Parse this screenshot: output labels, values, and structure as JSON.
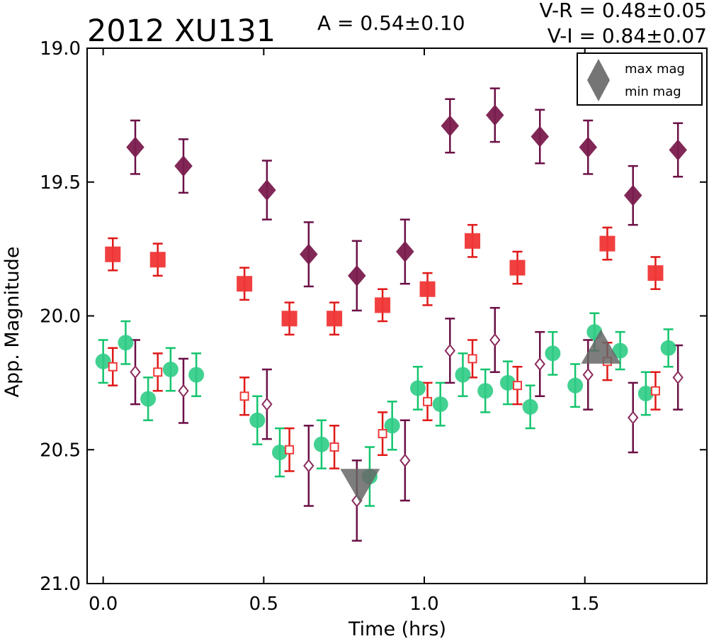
{
  "chart_data": {
    "type": "scatter",
    "title": "2012 XU131",
    "annotations": {
      "amplitude": "A  = 0.54±0.10",
      "v_r": "V-R = 0.48±0.05",
      "v_i": "V-I  = 0.84±0.07"
    },
    "xlabel": "Time (hrs)",
    "ylabel": "App. Magnitude",
    "xlim": [
      -0.05,
      1.88
    ],
    "ylim": [
      21.0,
      19.0
    ],
    "y_inverted": true,
    "grid": false,
    "x_ticks": [
      0.0,
      0.5,
      1.0,
      1.5
    ],
    "x_tick_labels": [
      "0.0",
      "0.5",
      "1.0",
      "1.5"
    ],
    "y_ticks": [
      19.0,
      19.5,
      20.0,
      20.5,
      21.0
    ],
    "y_tick_labels": [
      "19.0",
      "19.5",
      "20.0",
      "20.5",
      "21.0"
    ],
    "legend": {
      "placement": "top-right",
      "entries": [
        {
          "label": "max mag",
          "marker": "triangle-up",
          "color": "#666666"
        },
        {
          "label": "min mag",
          "marker": "triangle-down",
          "color": "#666666"
        }
      ]
    },
    "series": [
      {
        "marker": "diamond-filled",
        "color": "#7a1c4e",
        "ecolor": "#6b0f45",
        "points": [
          {
            "x": 0.1,
            "y": 19.37,
            "err": 0.1
          },
          {
            "x": 0.25,
            "y": 19.44,
            "err": 0.1
          },
          {
            "x": 0.51,
            "y": 19.53,
            "err": 0.11
          },
          {
            "x": 0.64,
            "y": 19.77,
            "err": 0.12
          },
          {
            "x": 0.79,
            "y": 19.85,
            "err": 0.13
          },
          {
            "x": 0.94,
            "y": 19.76,
            "err": 0.12
          },
          {
            "x": 1.08,
            "y": 19.29,
            "err": 0.1
          },
          {
            "x": 1.22,
            "y": 19.25,
            "err": 0.1
          },
          {
            "x": 1.36,
            "y": 19.33,
            "err": 0.1
          },
          {
            "x": 1.51,
            "y": 19.37,
            "err": 0.1
          },
          {
            "x": 1.65,
            "y": 19.55,
            "err": 0.11
          },
          {
            "x": 1.79,
            "y": 19.38,
            "err": 0.1
          }
        ]
      },
      {
        "marker": "square-filled",
        "color": "#f03535",
        "ecolor": "#e01818",
        "points": [
          {
            "x": 0.03,
            "y": 19.77,
            "err": 0.06
          },
          {
            "x": 0.17,
            "y": 19.79,
            "err": 0.06
          },
          {
            "x": 0.44,
            "y": 19.88,
            "err": 0.06
          },
          {
            "x": 0.58,
            "y": 20.01,
            "err": 0.06
          },
          {
            "x": 0.72,
            "y": 20.01,
            "err": 0.06
          },
          {
            "x": 0.87,
            "y": 19.96,
            "err": 0.06
          },
          {
            "x": 1.01,
            "y": 19.9,
            "err": 0.06
          },
          {
            "x": 1.15,
            "y": 19.72,
            "err": 0.06
          },
          {
            "x": 1.29,
            "y": 19.82,
            "err": 0.06
          },
          {
            "x": 1.57,
            "y": 19.73,
            "err": 0.06
          },
          {
            "x": 1.72,
            "y": 19.84,
            "err": 0.06
          }
        ]
      },
      {
        "marker": "circle-filled",
        "color": "#2ecc85",
        "ecolor": "#14c46e",
        "points": [
          {
            "x": 0.0,
            "y": 20.17,
            "err": 0.08
          },
          {
            "x": 0.07,
            "y": 20.1,
            "err": 0.08
          },
          {
            "x": 0.14,
            "y": 20.31,
            "err": 0.08
          },
          {
            "x": 0.21,
            "y": 20.2,
            "err": 0.08
          },
          {
            "x": 0.29,
            "y": 20.22,
            "err": 0.08
          },
          {
            "x": 0.48,
            "y": 20.39,
            "err": 0.09
          },
          {
            "x": 0.55,
            "y": 20.51,
            "err": 0.09
          },
          {
            "x": 0.68,
            "y": 20.48,
            "err": 0.09
          },
          {
            "x": 0.83,
            "y": 20.6,
            "err": 0.11
          },
          {
            "x": 0.9,
            "y": 20.41,
            "err": 0.09
          },
          {
            "x": 0.98,
            "y": 20.27,
            "err": 0.08
          },
          {
            "x": 1.05,
            "y": 20.33,
            "err": 0.08
          },
          {
            "x": 1.12,
            "y": 20.22,
            "err": 0.08
          },
          {
            "x": 1.19,
            "y": 20.28,
            "err": 0.08
          },
          {
            "x": 1.26,
            "y": 20.25,
            "err": 0.08
          },
          {
            "x": 1.33,
            "y": 20.34,
            "err": 0.08
          },
          {
            "x": 1.4,
            "y": 20.14,
            "err": 0.08
          },
          {
            "x": 1.47,
            "y": 20.26,
            "err": 0.08
          },
          {
            "x": 1.53,
            "y": 20.06,
            "err": 0.07
          },
          {
            "x": 1.61,
            "y": 20.13,
            "err": 0.07
          },
          {
            "x": 1.69,
            "y": 20.29,
            "err": 0.08
          },
          {
            "x": 1.76,
            "y": 20.12,
            "err": 0.07
          }
        ]
      },
      {
        "marker": "diamond-open",
        "color": "#8a2a5c",
        "ecolor": "#6b0f45",
        "points": [
          {
            "x": 0.1,
            "y": 20.21,
            "err": 0.12
          },
          {
            "x": 0.25,
            "y": 20.28,
            "err": 0.12
          },
          {
            "x": 0.51,
            "y": 20.33,
            "err": 0.13
          },
          {
            "x": 0.64,
            "y": 20.56,
            "err": 0.15
          },
          {
            "x": 0.79,
            "y": 20.69,
            "err": 0.15
          },
          {
            "x": 0.94,
            "y": 20.54,
            "err": 0.15
          },
          {
            "x": 1.08,
            "y": 20.13,
            "err": 0.12
          },
          {
            "x": 1.22,
            "y": 20.09,
            "err": 0.12
          },
          {
            "x": 1.36,
            "y": 20.18,
            "err": 0.12
          },
          {
            "x": 1.51,
            "y": 20.22,
            "err": 0.13
          },
          {
            "x": 1.65,
            "y": 20.38,
            "err": 0.13
          },
          {
            "x": 1.79,
            "y": 20.23,
            "err": 0.12
          }
        ]
      },
      {
        "marker": "square-open",
        "color": "#ee3b3b",
        "ecolor": "#e01818",
        "points": [
          {
            "x": 0.03,
            "y": 20.19,
            "err": 0.07
          },
          {
            "x": 0.17,
            "y": 20.21,
            "err": 0.07
          },
          {
            "x": 0.44,
            "y": 20.3,
            "err": 0.07
          },
          {
            "x": 0.58,
            "y": 20.5,
            "err": 0.08
          },
          {
            "x": 0.72,
            "y": 20.49,
            "err": 0.08
          },
          {
            "x": 0.87,
            "y": 20.44,
            "err": 0.08
          },
          {
            "x": 1.01,
            "y": 20.32,
            "err": 0.07
          },
          {
            "x": 1.15,
            "y": 20.16,
            "err": 0.07
          },
          {
            "x": 1.29,
            "y": 20.26,
            "err": 0.07
          },
          {
            "x": 1.57,
            "y": 20.17,
            "err": 0.07
          },
          {
            "x": 1.72,
            "y": 20.28,
            "err": 0.07
          }
        ]
      }
    ],
    "extrema": [
      {
        "kind": "max",
        "marker": "triangle-up",
        "x": 1.55,
        "y": 20.12,
        "color": "#666666"
      },
      {
        "kind": "min",
        "marker": "triangle-down",
        "x": 0.8,
        "y": 20.63,
        "color": "#666666"
      }
    ]
  }
}
